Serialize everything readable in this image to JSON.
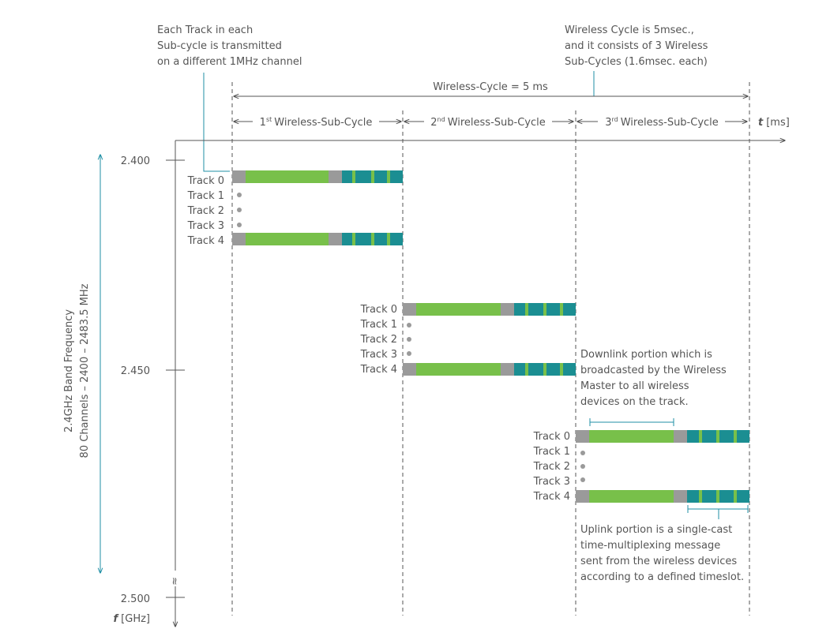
{
  "annotations": {
    "track_note": [
      "Each Track in each",
      "Sub-cycle is transmitted",
      "on a different 1MHz channel"
    ],
    "cycle_note": [
      "Wireless Cycle is 5msec.,",
      "and it consists of 3 Wireless",
      "Sub-Cycles (1.6msec. each)"
    ],
    "downlink_note": [
      "Downlink portion which is",
      "broadcasted by the Wireless",
      "Master to all wireless",
      "devices on the track."
    ],
    "uplink_note": [
      "Uplink portion is a single-cast",
      "time-multiplexing message",
      "sent from the wireless devices",
      "according to a defined timeslot."
    ]
  },
  "time_axis": {
    "cycle_label": "Wireless-Cycle = 5 ms",
    "label_var": "t",
    "label_unit": "[ms]",
    "subcycles": [
      {
        "ordinal": "1",
        "suffix": "st",
        "label": "Wireless-Sub-Cycle"
      },
      {
        "ordinal": "2",
        "suffix": "nd",
        "label": "Wireless-Sub-Cycle"
      },
      {
        "ordinal": "3",
        "suffix": "rd",
        "label": "Wireless-Sub-Cycle"
      }
    ]
  },
  "freq_axis": {
    "label_var": "f",
    "label_unit": "[GHz]",
    "ticks": [
      "2.400",
      "2.450",
      "2.500"
    ],
    "break_symbol": "≈",
    "band_label": [
      "2.4GHz Band Frequency",
      "80 Channels – 2400 – 2483.5 MHz"
    ]
  },
  "tracks": [
    "Track 0",
    "Track 1",
    "Track 2",
    "Track 3",
    "Track 4"
  ],
  "colors": {
    "gray": "#9a9a9a",
    "green": "#78c04a",
    "teal": "#1b8e92",
    "teal_line": "#1f8fa5",
    "text": "#555555"
  }
}
